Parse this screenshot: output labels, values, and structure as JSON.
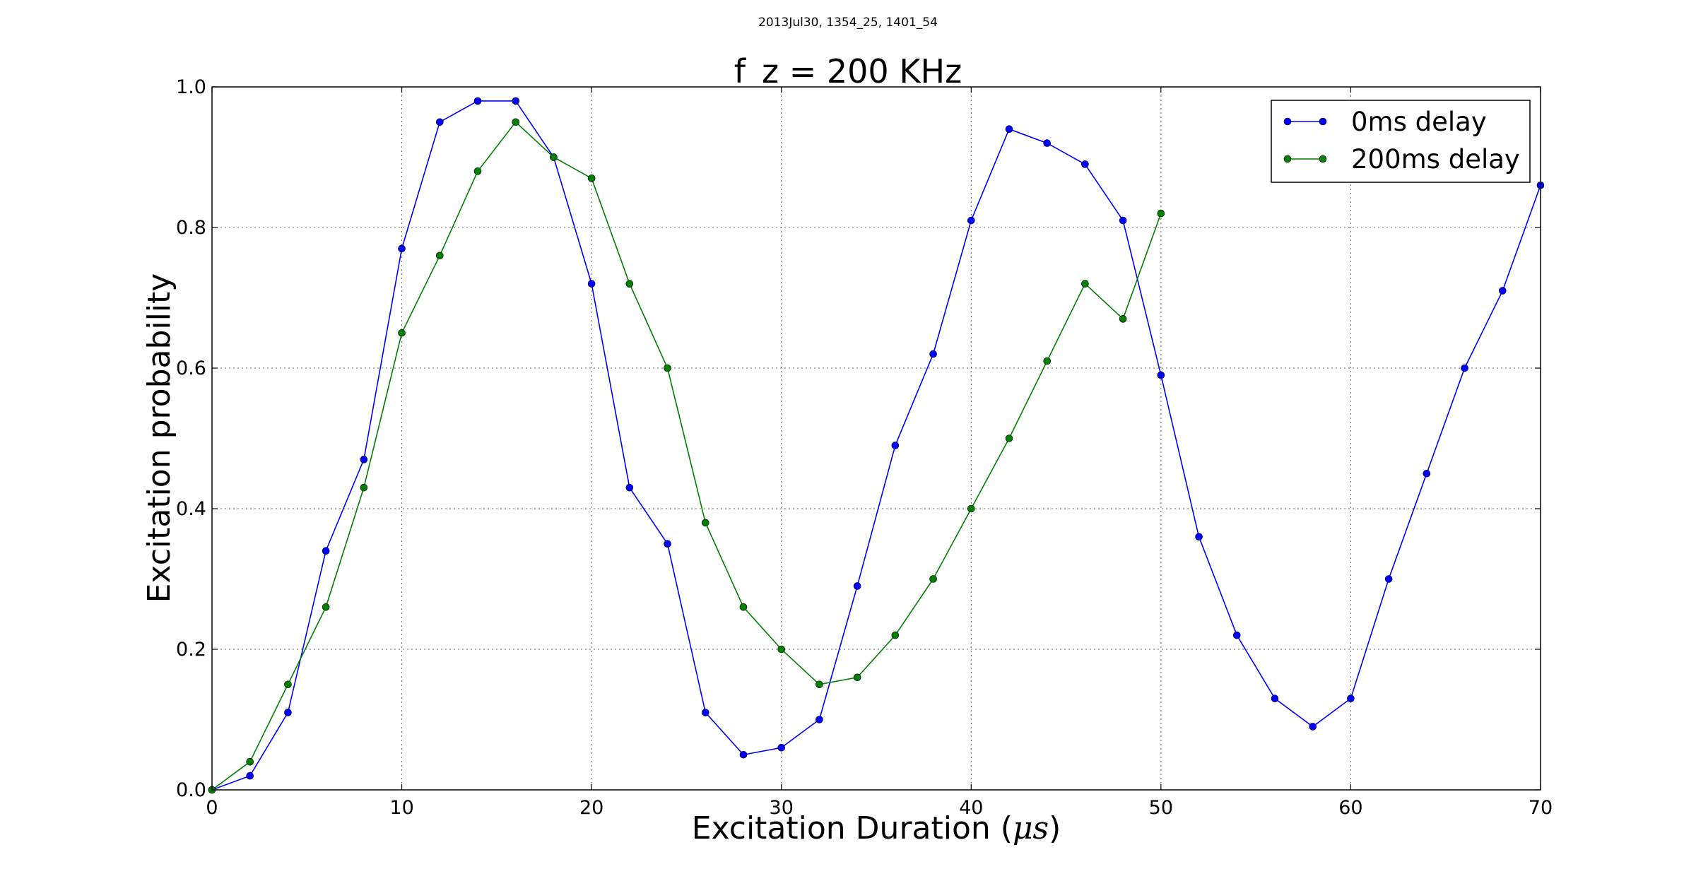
{
  "figure": {
    "suptitle": "2013Jul30, 1354_25, 1401_54"
  },
  "chart_data": {
    "type": "line",
    "title": "f_z = 200 KHz",
    "xlabel_prefix": "Excitation Duration (",
    "xlabel_symbol": "μs",
    "xlabel_suffix": ")",
    "ylabel": "Excitation probability",
    "xlim": [
      0,
      70
    ],
    "ylim": [
      0.0,
      1.0
    ],
    "xticks": [
      0,
      10,
      20,
      30,
      40,
      50,
      60,
      70
    ],
    "xtick_labels": [
      "0",
      "10",
      "20",
      "30",
      "40",
      "50",
      "60",
      "70"
    ],
    "yticks": [
      0.0,
      0.2,
      0.4,
      0.6,
      0.8,
      1.0
    ],
    "ytick_labels": [
      "0.0",
      "0.2",
      "0.4",
      "0.6",
      "0.8",
      "1.0"
    ],
    "grid": true,
    "legend_position": "top-right",
    "series": [
      {
        "name": "0ms delay",
        "color": "#0000ff",
        "x": [
          0,
          2,
          4,
          6,
          8,
          10,
          12,
          14,
          16,
          18,
          20,
          22,
          24,
          26,
          28,
          30,
          32,
          34,
          36,
          38,
          40,
          42,
          44,
          46,
          48,
          50,
          52,
          54,
          56,
          58,
          60,
          62,
          64,
          66,
          68,
          70
        ],
        "y": [
          0.0,
          0.02,
          0.11,
          0.34,
          0.47,
          0.77,
          0.95,
          0.98,
          0.98,
          0.9,
          0.72,
          0.43,
          0.35,
          0.11,
          0.05,
          0.06,
          0.1,
          0.29,
          0.49,
          0.62,
          0.81,
          0.94,
          0.92,
          0.89,
          0.81,
          0.59,
          0.36,
          0.22,
          0.13,
          0.09,
          0.13,
          0.3,
          0.45,
          0.6,
          0.71,
          0.86
        ]
      },
      {
        "name": "200ms delay",
        "color": "#007f00",
        "x": [
          0,
          2,
          4,
          6,
          8,
          10,
          12,
          14,
          16,
          18,
          20,
          22,
          24,
          26,
          28,
          30,
          32,
          34,
          36,
          38,
          40,
          42,
          44,
          46,
          48,
          50
        ],
        "y": [
          0.0,
          0.04,
          0.15,
          0.26,
          0.43,
          0.65,
          0.76,
          0.88,
          0.95,
          0.9,
          0.87,
          0.72,
          0.6,
          0.38,
          0.26,
          0.2,
          0.15,
          0.16,
          0.22,
          0.3,
          0.4,
          0.5,
          0.61,
          0.72,
          0.67,
          0.82
        ]
      }
    ]
  }
}
